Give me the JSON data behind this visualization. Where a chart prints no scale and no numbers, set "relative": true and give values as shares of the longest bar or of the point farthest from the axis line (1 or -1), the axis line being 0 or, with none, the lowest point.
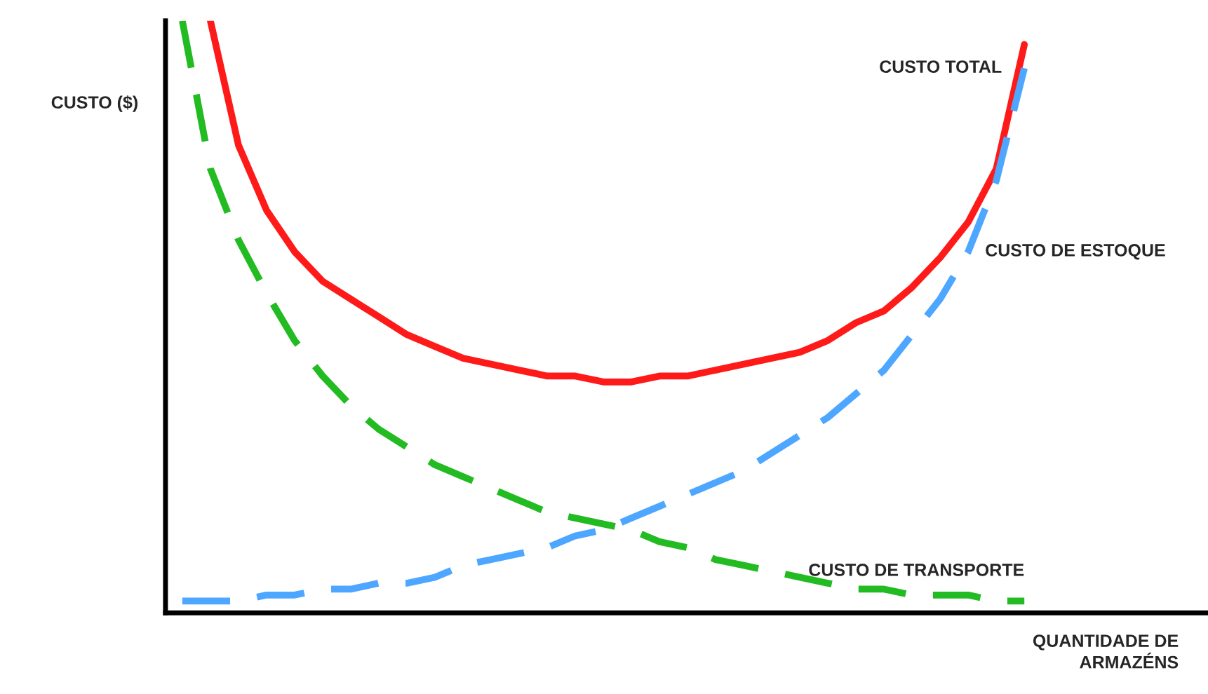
{
  "chart_data": {
    "type": "line",
    "relative": true,
    "xlabel": "QUANTIDADE DE\nARMAZÉNS",
    "ylabel": "CUSTO ($)",
    "legend": false,
    "categories": [
      null,
      null,
      null,
      null,
      null,
      null,
      null,
      null,
      null,
      null,
      null,
      null,
      null,
      null,
      null,
      null,
      null,
      null,
      null,
      null,
      null,
      null,
      null,
      null,
      null,
      null,
      null,
      null,
      null,
      null,
      null
    ],
    "series": [
      {
        "name": "CUSTO TOTAL",
        "color": "#ff1a1a",
        "line_style": "solid",
        "values": [
          null,
          1.0,
          0.79,
          0.68,
          0.61,
          0.56,
          0.53,
          0.5,
          0.47,
          0.45,
          0.43,
          0.42,
          0.41,
          0.4,
          0.4,
          0.39,
          0.39,
          0.4,
          0.4,
          0.41,
          0.42,
          0.43,
          0.44,
          0.46,
          0.49,
          0.51,
          0.55,
          0.6,
          0.66,
          0.75,
          0.96
        ]
      },
      {
        "name": "CUSTO DE ESTOQUE",
        "color": "#4da6ff",
        "line_style": "dashed",
        "values": [
          0.02,
          0.02,
          0.02,
          0.03,
          0.03,
          0.04,
          0.04,
          0.05,
          0.05,
          0.06,
          0.08,
          0.09,
          0.1,
          0.11,
          0.13,
          0.14,
          0.16,
          0.18,
          0.2,
          0.22,
          0.24,
          0.27,
          0.3,
          0.33,
          0.37,
          0.41,
          0.47,
          0.53,
          0.61,
          0.73,
          0.92
        ]
      },
      {
        "name": "CUSTO DE TRANSPORTE",
        "color": "#22bb22",
        "line_style": "dashed",
        "values": [
          1.0,
          0.75,
          0.63,
          0.54,
          0.46,
          0.4,
          0.35,
          0.31,
          0.28,
          0.25,
          0.23,
          0.21,
          0.19,
          0.17,
          0.16,
          0.15,
          0.14,
          0.12,
          0.11,
          0.09,
          0.08,
          0.07,
          0.06,
          0.05,
          0.04,
          0.04,
          0.03,
          0.03,
          0.03,
          0.02,
          0.02
        ]
      }
    ]
  }
}
